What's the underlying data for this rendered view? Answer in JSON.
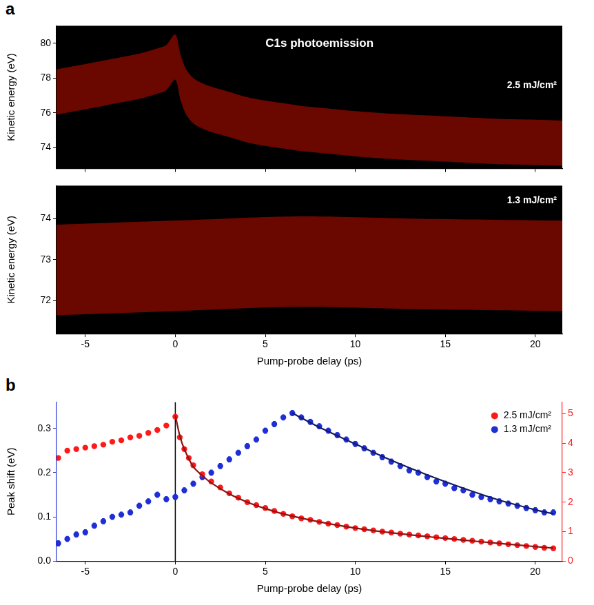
{
  "chart_data": [
    {
      "panel": "a",
      "type": "heatmap",
      "annotations": [
        "C1s photoemission",
        "2.5 mJ/cm²"
      ],
      "y_label": "Kinetic energy (eV)",
      "x": [
        -6.6,
        -5,
        -4,
        -3,
        -2,
        -1,
        -0.5,
        0,
        0.3,
        0.6,
        1,
        1.5,
        2,
        3,
        4,
        5,
        6,
        7,
        8,
        10,
        12,
        14,
        16,
        18,
        20,
        21.5
      ],
      "band_center": [
        77.2,
        77.5,
        77.7,
        77.9,
        78.1,
        78.4,
        78.6,
        79.2,
        78.0,
        77.2,
        76.7,
        76.4,
        76.2,
        75.9,
        75.6,
        75.4,
        75.25,
        75.1,
        75.0,
        74.8,
        74.65,
        74.55,
        74.45,
        74.35,
        74.3,
        74.25
      ],
      "band_width": 1.3,
      "xlim": [
        -6.6,
        21.5
      ],
      "xticks": [
        -5,
        0,
        5,
        10,
        15,
        20
      ],
      "ylim": [
        72.8,
        81
      ],
      "yticks": [
        74,
        76,
        78,
        80
      ],
      "grid": false,
      "tick_labels": "y"
    },
    {
      "type": "heatmap",
      "annotations": [
        "1.3 mJ/cm²"
      ],
      "y_label": "Kinetic energy (eV)",
      "x_label": "Pump-probe delay (ps)",
      "x": [
        -6.6,
        0,
        6.5,
        13,
        21.5
      ],
      "band_center": [
        72.75,
        72.85,
        72.95,
        72.9,
        72.85
      ],
      "band_width": 1.1,
      "xlim": [
        -6.6,
        21.5
      ],
      "xticks": [
        -5,
        0,
        5,
        10,
        15,
        20
      ],
      "ylim": [
        71.2,
        74.8
      ],
      "yticks": [
        72,
        73,
        74
      ],
      "grid": false,
      "tick_labels": true
    },
    {
      "panel": "b",
      "type": "scatter",
      "x_label": "Pump-probe delay (ps)",
      "y_label": "Peak shift (eV)",
      "reference_x": 0,
      "series": [
        {
          "name": "2.5 mJ/cm²",
          "color": "#ff1a1a",
          "axis": "y2",
          "marker": "circle",
          "error": 0.05,
          "x": [
            -6.5,
            -6,
            -5.5,
            -5,
            -4.5,
            -4,
            -3.5,
            -3,
            -2.5,
            -2,
            -1.5,
            -1,
            -0.5,
            0,
            0.25,
            0.5,
            0.75,
            1,
            1.5,
            2,
            2.5,
            3,
            3.5,
            4,
            4.5,
            5,
            5.5,
            6,
            6.5,
            7,
            7.5,
            8,
            8.5,
            9,
            9.5,
            10,
            10.5,
            11,
            11.5,
            12,
            12.5,
            13,
            13.5,
            14,
            14.5,
            15,
            15.5,
            16,
            16.5,
            17,
            17.5,
            18,
            18.5,
            19,
            19.5,
            20,
            20.5,
            21
          ],
          "values": [
            3.5,
            3.75,
            3.8,
            3.85,
            3.9,
            3.95,
            4.05,
            4.1,
            4.2,
            4.25,
            4.35,
            4.45,
            4.6,
            4.9,
            4.2,
            3.8,
            3.5,
            3.25,
            2.95,
            2.7,
            2.5,
            2.3,
            2.15,
            2.0,
            1.9,
            1.8,
            1.7,
            1.6,
            1.52,
            1.45,
            1.4,
            1.33,
            1.27,
            1.22,
            1.17,
            1.12,
            1.08,
            1.04,
            1.0,
            0.97,
            0.93,
            0.9,
            0.87,
            0.84,
            0.81,
            0.78,
            0.75,
            0.72,
            0.69,
            0.66,
            0.63,
            0.6,
            0.57,
            0.54,
            0.51,
            0.48,
            0.45,
            0.43
          ],
          "fit": {
            "color": "#8b1414",
            "x": [
              0,
              0.25,
              0.5,
              1,
              1.5,
              2,
              3,
              4,
              5,
              6,
              8,
              10,
              12,
              14,
              16,
              18,
              20,
              21
            ],
            "values": [
              4.95,
              4.25,
              3.8,
              3.2,
              2.9,
              2.65,
              2.28,
              2.0,
              1.78,
              1.6,
              1.33,
              1.12,
              0.96,
              0.83,
              0.71,
              0.6,
              0.49,
              0.44
            ]
          }
        },
        {
          "name": "1.3 mJ/cm²",
          "color": "#1f2fd6",
          "axis": "y",
          "marker": "circle",
          "error": 0.006,
          "x": [
            -6.5,
            -6,
            -5.5,
            -5,
            -4.5,
            -4,
            -3.5,
            -3,
            -2.5,
            -2,
            -1.5,
            -1,
            -0.5,
            0,
            0.5,
            1,
            1.5,
            2,
            2.5,
            3,
            3.5,
            4,
            4.5,
            5,
            5.5,
            6,
            6.5,
            7,
            7.5,
            8,
            8.5,
            9,
            9.5,
            10,
            10.5,
            11,
            11.5,
            12,
            12.5,
            13,
            13.5,
            14,
            14.5,
            15,
            15.5,
            16,
            16.5,
            17,
            17.5,
            18,
            18.5,
            19,
            19.5,
            20,
            20.5,
            21
          ],
          "values": [
            0.04,
            0.05,
            0.06,
            0.065,
            0.08,
            0.09,
            0.1,
            0.105,
            0.11,
            0.125,
            0.135,
            0.15,
            0.14,
            0.145,
            0.16,
            0.175,
            0.19,
            0.2,
            0.215,
            0.23,
            0.245,
            0.26,
            0.275,
            0.295,
            0.31,
            0.325,
            0.335,
            0.325,
            0.315,
            0.305,
            0.295,
            0.285,
            0.275,
            0.265,
            0.255,
            0.245,
            0.235,
            0.225,
            0.215,
            0.205,
            0.2,
            0.19,
            0.18,
            0.175,
            0.165,
            0.16,
            0.15,
            0.145,
            0.14,
            0.135,
            0.13,
            0.125,
            0.12,
            0.115,
            0.11,
            0.11
          ],
          "fit": {
            "color": "#141a66",
            "x": [
              6.5,
              8,
              10,
              12,
              14,
              16,
              18,
              20,
              21
            ],
            "values": [
              0.335,
              0.303,
              0.265,
              0.228,
              0.195,
              0.165,
              0.138,
              0.116,
              0.107
            ]
          }
        }
      ],
      "xlim": [
        -6.6,
        21.5
      ],
      "xticks": [
        -5,
        0,
        5,
        10,
        15,
        20
      ],
      "ylim": [
        0,
        0.36
      ],
      "yticks": [
        {
          "value": 0,
          "label": "0.0"
        },
        {
          "value": 0.1,
          "label": "0.1"
        },
        {
          "value": 0.2,
          "label": "0.2"
        },
        {
          "value": 0.3,
          "label": "0.3"
        }
      ],
      "y2lim": [
        0,
        5.4
      ],
      "y2ticks": [
        0,
        1,
        2,
        3,
        4,
        5
      ],
      "grid": false,
      "legend": "upper right"
    }
  ]
}
